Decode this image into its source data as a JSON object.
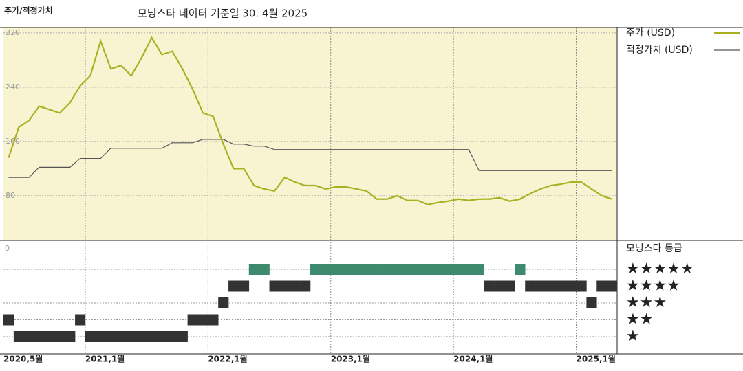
{
  "chart_data": {
    "type": "line",
    "title": "주가/적정가치",
    "subtitle": "모닝스타 데이터 기준일 30. 4월 2025",
    "categories": [
      "2020,5월",
      null,
      null,
      null,
      null,
      null,
      null,
      null,
      "2021,1월",
      null,
      null,
      null,
      null,
      null,
      null,
      null,
      null,
      null,
      null,
      null,
      "2022,1월",
      null,
      null,
      null,
      null,
      null,
      null,
      null,
      null,
      null,
      null,
      null,
      "2023,1월",
      null,
      null,
      null,
      null,
      null,
      null,
      null,
      null,
      null,
      null,
      null,
      "2024,1월",
      null,
      null,
      null,
      null,
      null,
      null,
      null,
      null,
      null,
      null,
      null,
      "2025,1월",
      null,
      null,
      null
    ],
    "series": [
      {
        "name": "주가 (USD)",
        "color": "#a9b123",
        "values": [
          136,
          181,
          191,
          212,
          207,
          202,
          217,
          242,
          257,
          308,
          267,
          272,
          257,
          283,
          313,
          288,
          293,
          267,
          237,
          202,
          197,
          156,
          120,
          120,
          95,
          90,
          87,
          107,
          100,
          95,
          95,
          90,
          93,
          93,
          90,
          87,
          75,
          75,
          80,
          73,
          73,
          67,
          70,
          72,
          75,
          73,
          75,
          75,
          77,
          72,
          75,
          83,
          90,
          95,
          97,
          100,
          100,
          90,
          80,
          75
        ]
      },
      {
        "name": "적정가치 (USD)",
        "color": "#555555",
        "values": [
          107,
          107,
          107,
          122,
          122,
          122,
          122,
          135,
          135,
          135,
          150,
          150,
          150,
          150,
          150,
          150,
          158,
          158,
          158,
          163,
          163,
          163,
          156,
          156,
          153,
          153,
          148,
          148,
          148,
          148,
          148,
          148,
          148,
          148,
          148,
          148,
          148,
          148,
          148,
          148,
          148,
          148,
          148,
          148,
          148,
          148,
          117,
          117,
          117,
          117,
          117,
          117,
          117,
          117,
          117,
          117,
          117,
          117,
          117,
          117
        ]
      }
    ],
    "ylim": [
      14,
      328
    ],
    "yticks": [
      80,
      160,
      240,
      320
    ],
    "grid": true,
    "ratings": {
      "title": "모닝스타 등급",
      "ticks": [
        0
      ],
      "levels": [
        "★",
        "★★",
        "★★★",
        "★★★★",
        "★★★★★"
      ],
      "colors": [
        "#333333",
        "#333333",
        "#333333",
        "#333333",
        "#3d8a6e"
      ],
      "values": [
        2,
        1,
        1,
        1,
        1,
        1,
        1,
        2,
        1,
        1,
        1,
        1,
        1,
        1,
        1,
        1,
        1,
        1,
        2,
        2,
        2,
        3,
        4,
        4,
        5,
        5,
        4,
        4,
        4,
        4,
        5,
        5,
        5,
        5,
        5,
        5,
        5,
        5,
        5,
        5,
        5,
        5,
        5,
        5,
        5,
        5,
        5,
        4,
        4,
        4,
        5,
        4,
        4,
        4,
        4,
        4,
        4,
        3,
        4,
        4
      ]
    }
  }
}
